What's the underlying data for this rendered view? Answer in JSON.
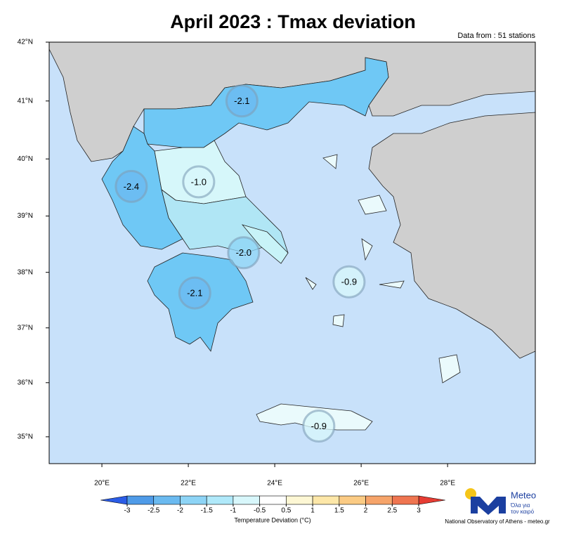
{
  "header": {
    "title": "April 2023 : Tmax deviation",
    "subtitle": "Data from : 51 stations"
  },
  "map": {
    "xlim": [
      18.78,
      30.03
    ],
    "ylim": [
      34.5,
      42.0
    ],
    "xticks": [
      {
        "value": 20,
        "label": "20°E"
      },
      {
        "value": 22,
        "label": "22°E"
      },
      {
        "value": 24,
        "label": "24°E"
      },
      {
        "value": 26,
        "label": "26°E"
      },
      {
        "value": 28,
        "label": "28°E"
      }
    ],
    "yticks": [
      {
        "value": 35,
        "label": "35°N"
      },
      {
        "value": 36,
        "label": "36°N"
      },
      {
        "value": 37,
        "label": "37°N"
      },
      {
        "value": 38,
        "label": "38°N"
      },
      {
        "value": 39,
        "label": "39°N"
      },
      {
        "value": 40,
        "label": "40°N"
      },
      {
        "value": 41,
        "label": "41°N"
      },
      {
        "value": 42,
        "label": "42°N"
      }
    ],
    "stations": {
      "lon": [
        23.24,
        20.68,
        22.24,
        23.28,
        22.15,
        25.72,
        25.02
      ],
      "lat": [
        41.0,
        39.52,
        39.6,
        38.35,
        37.63,
        37.83,
        35.2
      ],
      "values": [
        -2.1,
        -2.4,
        -1.0,
        -2.0,
        -2.1,
        -0.9,
        -0.9
      ],
      "value_labels": [
        "-2.1",
        "-2.4",
        "-1.0",
        "-2.0",
        "-2.1",
        "-0.9",
        "-0.9"
      ]
    }
  },
  "colorbar": {
    "ticks": [
      -3,
      -2.5,
      -2,
      -1.5,
      -1,
      -0.5,
      0.5,
      1,
      1.5,
      2,
      2.5,
      3
    ],
    "colors": [
      "#2b5ce6",
      "#4f9be8",
      "#6bbaf0",
      "#8dd4f6",
      "#b0e9fa",
      "#d8f7fb",
      "#ffffff",
      "#fdf7d4",
      "#fde7a8",
      "#fbcb84",
      "#f6a46a",
      "#ef7550",
      "#e63c33"
    ],
    "label": "Temperature Deviation (°C)"
  },
  "logo": {
    "name": "Meteo",
    "tagline_1": "Όλα για",
    "tagline_2": "τον καιρό",
    "credit": "National Observatory of Athens - meteo.gr"
  }
}
